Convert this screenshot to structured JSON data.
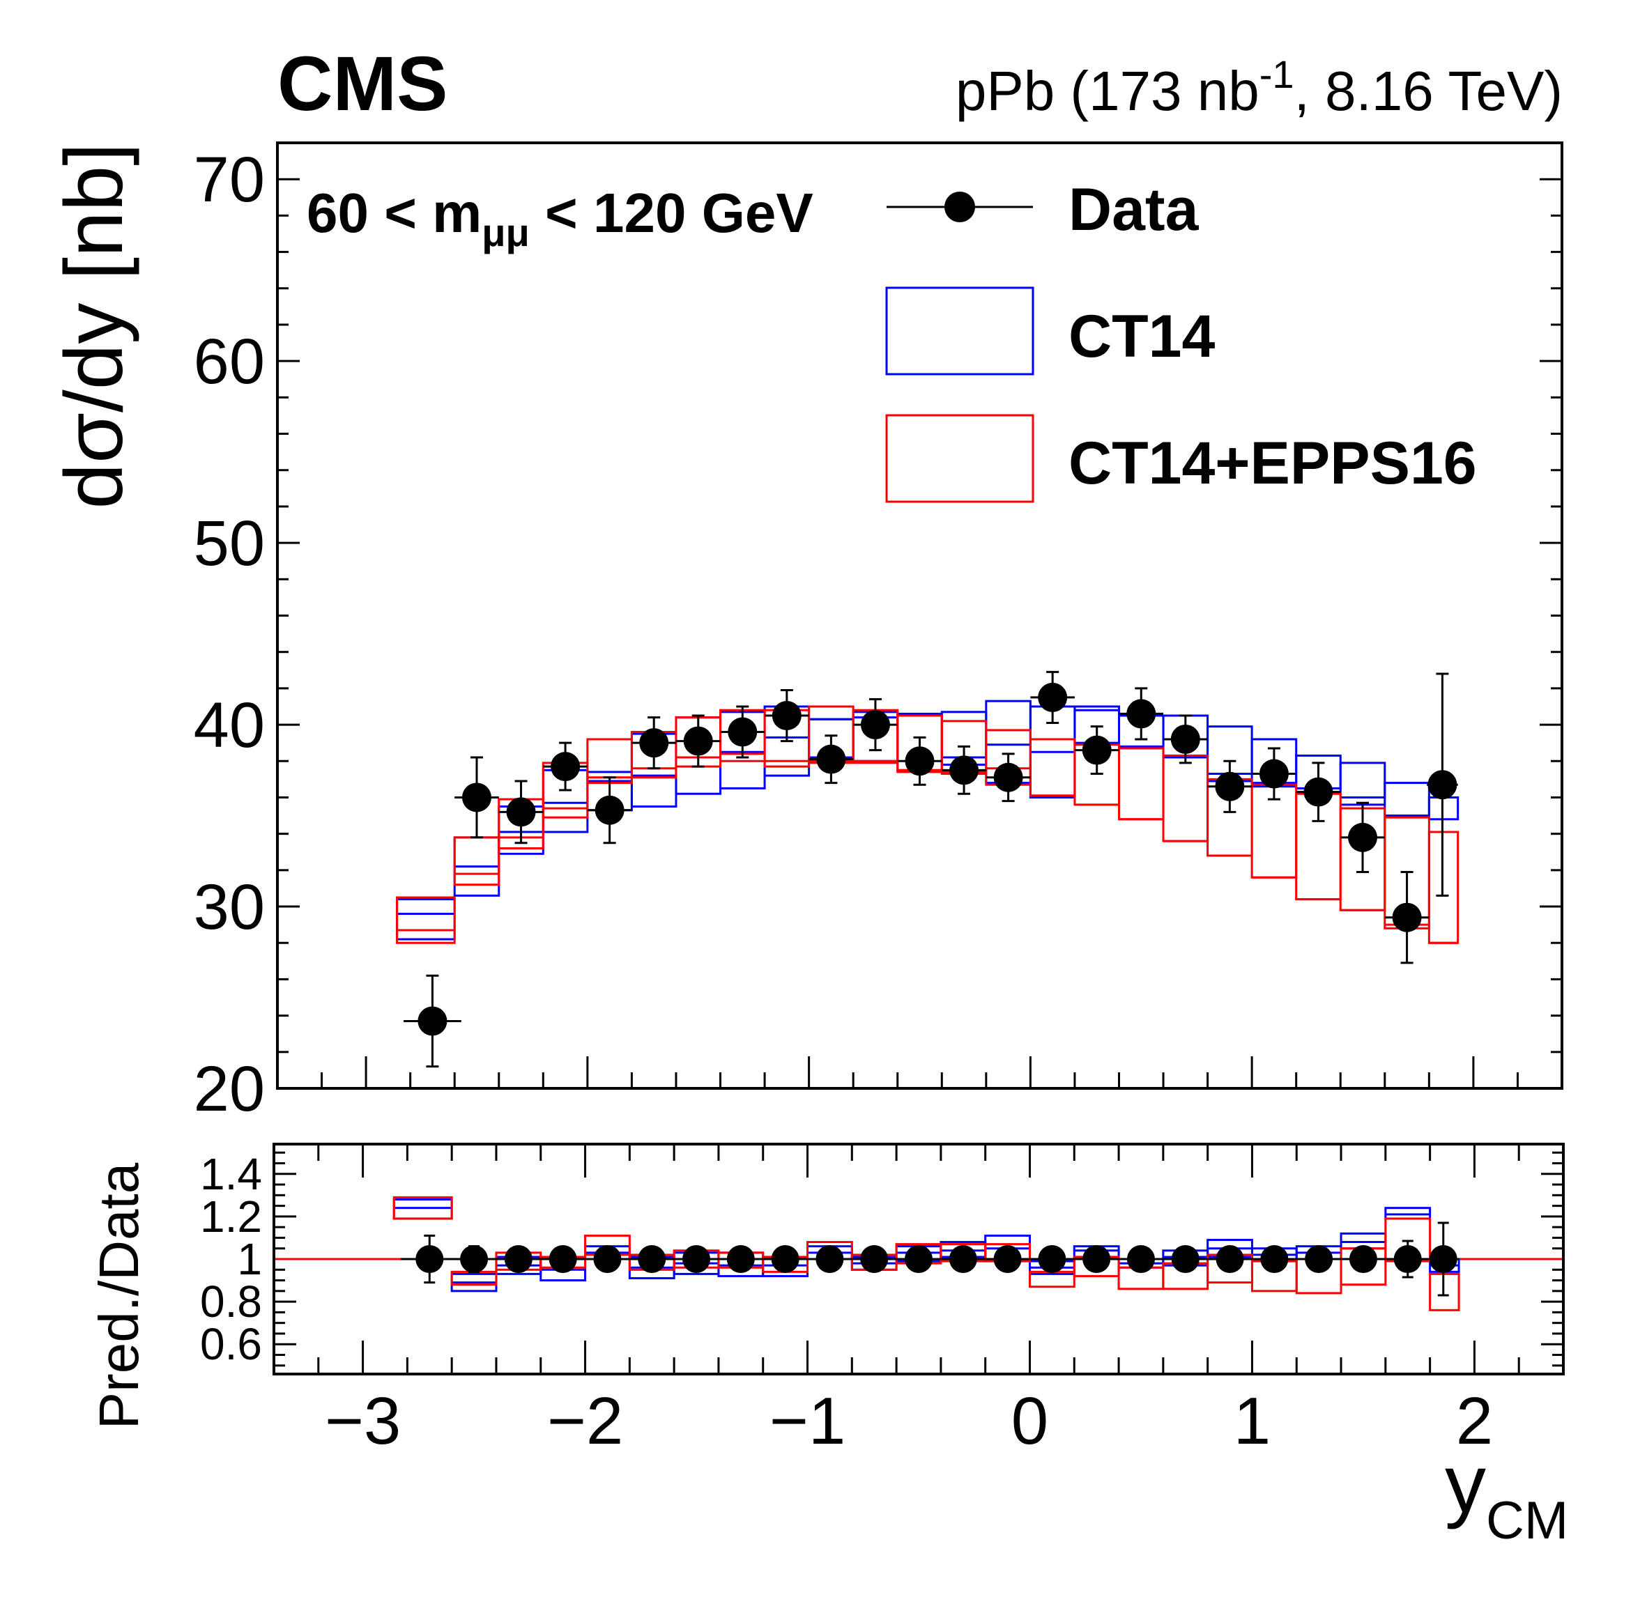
{
  "header": {
    "experiment": "CMS",
    "lumi_prefix": "pPb (173 nb",
    "lumi_sup": "-1",
    "lumi_suffix": ", 8.16 TeV)"
  },
  "chart_data": [
    {
      "type": "scatter",
      "panel": "main",
      "ylabel": "dσ/dy [nb]",
      "ylim": [
        20,
        72
      ],
      "xlim": [
        -3.4,
        2.4
      ],
      "yticks": [
        "20",
        "30",
        "40",
        "50",
        "60",
        "70"
      ],
      "annotation": {
        "pre": "60 < m",
        "sub": "μμ",
        "post": " < 120 GeV"
      },
      "legend": {
        "placement": "top-right",
        "entries": [
          {
            "label": "Data",
            "style": "marker",
            "color": "#000000"
          },
          {
            "label": "CT14",
            "style": "box",
            "color": "#0000ff"
          },
          {
            "label": "CT14+EPPS16",
            "style": "box",
            "color": "#ff0000"
          }
        ]
      },
      "series": [
        {
          "name": "Data",
          "color": "#000000",
          "x": [
            -2.7,
            -2.5,
            -2.3,
            -2.1,
            -1.9,
            -1.7,
            -1.5,
            -1.3,
            -1.1,
            -0.9,
            -0.7,
            -0.5,
            -0.3,
            -0.1,
            0.1,
            0.3,
            0.5,
            0.7,
            0.9,
            1.1,
            1.3,
            1.5,
            1.7,
            1.86
          ],
          "xerr": [
            0.13,
            0.1,
            0.1,
            0.1,
            0.1,
            0.1,
            0.1,
            0.1,
            0.1,
            0.1,
            0.1,
            0.1,
            0.1,
            0.1,
            0.1,
            0.1,
            0.1,
            0.1,
            0.1,
            0.1,
            0.1,
            0.1,
            0.1,
            0.07
          ],
          "y": [
            23.7,
            36.0,
            35.2,
            37.7,
            35.3,
            39.0,
            39.1,
            39.6,
            40.5,
            38.1,
            40.0,
            38.0,
            37.5,
            37.1,
            41.5,
            38.6,
            40.6,
            39.2,
            36.6,
            37.3,
            36.3,
            33.8,
            29.4,
            36.7
          ],
          "yerr": [
            2.5,
            2.2,
            1.7,
            1.3,
            1.8,
            1.4,
            1.4,
            1.4,
            1.4,
            1.3,
            1.4,
            1.3,
            1.3,
            1.3,
            1.4,
            1.3,
            1.4,
            1.3,
            1.4,
            1.4,
            1.6,
            1.9,
            2.5,
            6.1
          ]
        },
        {
          "name": "CT14",
          "color": "#0000ff",
          "bins": [
            [
              -2.86,
              -2.6
            ],
            [
              -2.6,
              -2.4
            ],
            [
              -2.4,
              -2.2
            ],
            [
              -2.2,
              -2.0
            ],
            [
              -2.0,
              -1.8
            ],
            [
              -1.8,
              -1.6
            ],
            [
              -1.6,
              -1.4
            ],
            [
              -1.4,
              -1.2
            ],
            [
              -1.2,
              -1.0
            ],
            [
              -1.0,
              -0.8
            ],
            [
              -0.8,
              -0.6
            ],
            [
              -0.6,
              -0.4
            ],
            [
              -0.4,
              -0.2
            ],
            [
              -0.2,
              0.0
            ],
            [
              0.0,
              0.2
            ],
            [
              0.2,
              0.4
            ],
            [
              0.4,
              0.6
            ],
            [
              0.6,
              0.8
            ],
            [
              0.8,
              1.0
            ],
            [
              1.0,
              1.2
            ],
            [
              1.2,
              1.4
            ],
            [
              1.4,
              1.6
            ],
            [
              1.6,
              1.8
            ],
            [
              1.8,
              1.93
            ]
          ],
          "central": [
            29.6,
            32.2,
            34.1,
            35.7,
            36.9,
            37.2,
            38.2,
            38.5,
            39.3,
            40.3,
            40.4,
            40.5,
            38.2,
            38.9,
            38.5,
            40.8,
            38.8,
            38.2,
            36.9,
            36.6,
            36.3,
            35.6,
            35.0,
            36.0
          ],
          "low": [
            28.2,
            30.6,
            32.9,
            34.1,
            35.3,
            35.5,
            36.2,
            36.5,
            37.2,
            38.2,
            38.0,
            37.5,
            37.8,
            36.8,
            36.0,
            39.0,
            38.7,
            38.3,
            37.3,
            36.8,
            36.5,
            36.0,
            35.0,
            34.8
          ],
          "high": [
            30.4,
            33.8,
            35.5,
            37.5,
            37.4,
            39.5,
            40.4,
            40.7,
            41.0,
            40.3,
            40.7,
            40.6,
            40.7,
            41.3,
            41.0,
            41.0,
            40.5,
            40.5,
            39.9,
            39.2,
            38.3,
            37.9,
            36.8,
            36.0
          ]
        },
        {
          "name": "CT14+EPPS16",
          "color": "#ff0000",
          "bins": [
            [
              -2.86,
              -2.6
            ],
            [
              -2.6,
              -2.4
            ],
            [
              -2.4,
              -2.2
            ],
            [
              -2.2,
              -2.0
            ],
            [
              -2.0,
              -1.8
            ],
            [
              -1.8,
              -1.6
            ],
            [
              -1.6,
              -1.4
            ],
            [
              -1.4,
              -1.2
            ],
            [
              -1.2,
              -1.0
            ],
            [
              -1.0,
              -0.8
            ],
            [
              -0.8,
              -0.6
            ],
            [
              -0.6,
              -0.4
            ],
            [
              -0.4,
              -0.2
            ],
            [
              -0.2,
              0.0
            ],
            [
              0.0,
              0.2
            ],
            [
              0.2,
              0.4
            ],
            [
              0.4,
              0.6
            ],
            [
              0.6,
              0.8
            ],
            [
              0.8,
              1.0
            ],
            [
              1.0,
              1.2
            ],
            [
              1.2,
              1.4
            ],
            [
              1.4,
              1.6
            ],
            [
              1.6,
              1.8
            ],
            [
              1.8,
              1.93
            ]
          ],
          "central": [
            28.7,
            31.8,
            33.8,
            35.4,
            37.1,
            37.6,
            38.2,
            38.4,
            38.0,
            38.0,
            38.0,
            37.5,
            37.4,
            37.6,
            36.1,
            35.6,
            34.8,
            33.6,
            32.8,
            31.6,
            30.4,
            29.8,
            29.0,
            28.0
          ],
          "low": [
            28.0,
            31.2,
            33.2,
            34.9,
            36.8,
            37.1,
            37.7,
            38.0,
            37.7,
            37.9,
            37.9,
            37.4,
            37.3,
            36.7,
            36.1,
            35.6,
            34.8,
            33.6,
            32.8,
            31.6,
            30.4,
            29.8,
            28.8,
            28.0
          ],
          "high": [
            30.5,
            33.8,
            35.9,
            37.9,
            39.2,
            39.6,
            40.4,
            40.8,
            40.8,
            41.0,
            40.8,
            40.5,
            40.2,
            39.7,
            39.2,
            38.9,
            38.7,
            38.3,
            37.0,
            36.7,
            36.2,
            35.4,
            34.9,
            34.1
          ]
        }
      ]
    },
    {
      "type": "scatter",
      "panel": "ratio",
      "ylabel": "Pred./Data",
      "xlabel_main": "y",
      "xlabel_sub": "CM",
      "ylim": [
        0.46,
        1.54
      ],
      "xlim": [
        -3.4,
        2.4
      ],
      "yticks": [
        "0.6",
        "0.8",
        "1",
        "1.2",
        "1.4"
      ],
      "xticks": [
        "−3",
        "−2",
        "−1",
        "0",
        "1",
        "2"
      ],
      "reference_line": 1.0,
      "series": [
        {
          "name": "Data",
          "color": "#000000",
          "x": [
            -2.7,
            -2.5,
            -2.3,
            -2.1,
            -1.9,
            -1.7,
            -1.5,
            -1.3,
            -1.1,
            -0.9,
            -0.7,
            -0.5,
            -0.3,
            -0.1,
            0.1,
            0.3,
            0.5,
            0.7,
            0.9,
            1.1,
            1.3,
            1.5,
            1.7,
            1.86
          ],
          "y": [
            1,
            1,
            1,
            1,
            1,
            1,
            1,
            1,
            1,
            1,
            1,
            1,
            1,
            1,
            1,
            1,
            1,
            1,
            1,
            1,
            1,
            1,
            1,
            1
          ],
          "yerr": [
            0.11,
            0.06,
            0.05,
            0.035,
            0.05,
            0.035,
            0.035,
            0.035,
            0.035,
            0.035,
            0.035,
            0.035,
            0.035,
            0.035,
            0.035,
            0.035,
            0.035,
            0.035,
            0.04,
            0.04,
            0.045,
            0.05,
            0.085,
            0.17
          ]
        },
        {
          "name": "CT14",
          "color": "#0000ff",
          "low": [
            1.19,
            0.85,
            0.93,
            0.9,
            1.0,
            0.91,
            0.93,
            0.92,
            0.92,
            1.0,
            0.95,
            0.99,
            1.01,
            0.99,
            0.93,
            1.01,
            0.96,
            0.97,
            1.01,
            0.99,
            1.0,
            1.05,
            1.19,
            0.94
          ],
          "high": [
            1.28,
            0.93,
            1.01,
            1.0,
            1.06,
            1.01,
            1.03,
            1.03,
            1.01,
            1.06,
            1.01,
            1.06,
            1.08,
            1.11,
            0.99,
            1.06,
            1.0,
            1.04,
            1.09,
            1.05,
            1.06,
            1.12,
            1.24,
            1.0
          ],
          "central": [
            1.24,
            0.89,
            0.97,
            0.95,
            1.03,
            0.96,
            0.98,
            0.97,
            0.97,
            1.03,
            0.98,
            1.03,
            1.04,
            1.05,
            0.96,
            1.04,
            0.98,
            1.01,
            1.05,
            1.02,
            1.03,
            1.08,
            1.21,
            0.97
          ]
        },
        {
          "name": "CT14+EPPS16",
          "color": "#ff0000",
          "low": [
            1.19,
            0.88,
            0.95,
            0.96,
            1.02,
            0.95,
            0.96,
            0.96,
            0.94,
            1.0,
            0.95,
            0.98,
            0.99,
            0.99,
            0.87,
            0.92,
            0.86,
            0.86,
            0.89,
            0.85,
            0.84,
            0.88,
            0.99,
            0.76
          ],
          "high": [
            1.29,
            0.94,
            1.03,
            1.01,
            1.11,
            1.02,
            1.04,
            1.03,
            1.01,
            1.08,
            1.02,
            1.07,
            1.07,
            1.07,
            0.94,
            1.01,
            0.96,
            0.98,
            1.02,
            0.99,
            1.0,
            1.05,
            1.19,
            0.93
          ]
        }
      ]
    }
  ]
}
